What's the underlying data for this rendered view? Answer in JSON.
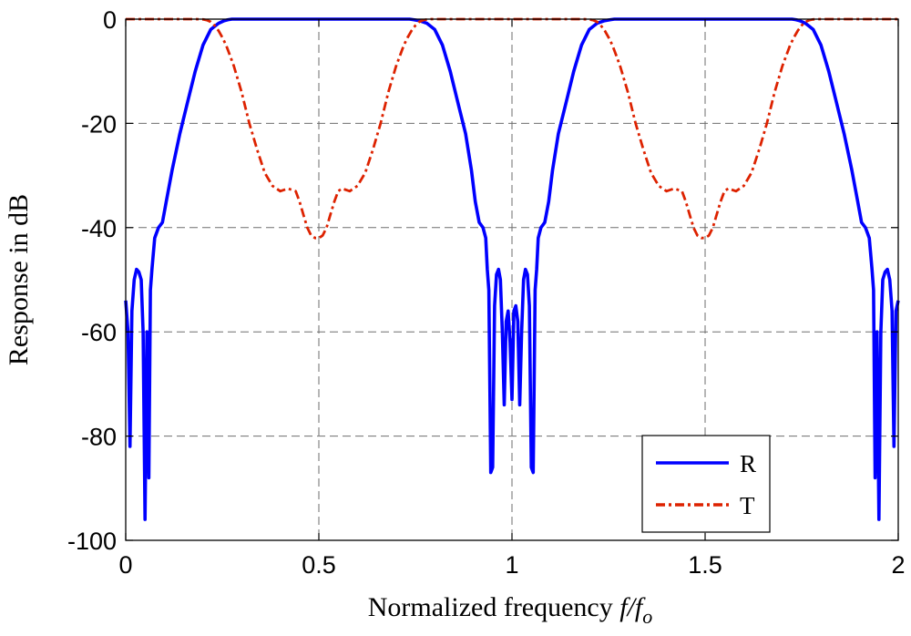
{
  "chart_data": {
    "type": "line",
    "title": "",
    "xlabel": "Normalized frequency",
    "xlabel_symbol_num": "f/f",
    "xlabel_symbol_sub": "o",
    "ylabel": "Response in dB",
    "xlim": [
      0,
      2
    ],
    "ylim": [
      -100,
      0
    ],
    "xticks": [
      0,
      0.5,
      1,
      1.5,
      2
    ],
    "xtick_labels": [
      "0",
      "0.5",
      "1",
      "1.5",
      "2"
    ],
    "yticks": [
      0,
      -20,
      -40,
      -60,
      -80,
      -100
    ],
    "ytick_labels": [
      "0",
      "-20",
      "-40",
      "-60",
      "-80",
      "-100"
    ],
    "grid": true,
    "legend_position": "bottom-right",
    "series": [
      {
        "name": "R",
        "color": "#0000ff",
        "style": "solid",
        "x": [
          0,
          0.006,
          0.011,
          0.016,
          0.022,
          0.028,
          0.034,
          0.04,
          0.045,
          0.05,
          0.055,
          0.06,
          0.064,
          0.068,
          0.075,
          0.085,
          0.095,
          0.105,
          0.12,
          0.14,
          0.16,
          0.18,
          0.2,
          0.22,
          0.24,
          0.255,
          0.265,
          0.275,
          0.285,
          0.3,
          0.5,
          0.7,
          0.715,
          0.725,
          0.735,
          0.745,
          0.76,
          0.78,
          0.8,
          0.82,
          0.84,
          0.86,
          0.88,
          0.895,
          0.905,
          0.915,
          0.925,
          0.932,
          0.936,
          0.94,
          0.945,
          0.95,
          0.955,
          0.96,
          0.965,
          0.97,
          0.975,
          0.98,
          0.985,
          0.99,
          0.995,
          1.0,
          1.005,
          1.01,
          1.015,
          1.02,
          1.025,
          1.03,
          1.035,
          1.04,
          1.045,
          1.05,
          1.055,
          1.06,
          1.064,
          1.068,
          1.075,
          1.085,
          1.095,
          1.105,
          1.12,
          1.14,
          1.16,
          1.18,
          1.2,
          1.22,
          1.24,
          1.255,
          1.265,
          1.275,
          1.285,
          1.3,
          1.5,
          1.7,
          1.715,
          1.725,
          1.735,
          1.745,
          1.76,
          1.78,
          1.8,
          1.82,
          1.84,
          1.86,
          1.88,
          1.895,
          1.905,
          1.915,
          1.925,
          1.932,
          1.936,
          1.94,
          1.945,
          1.95,
          1.955,
          1.96,
          1.966,
          1.972,
          1.978,
          1.984,
          1.989,
          1.994,
          2.0
        ],
        "values": [
          -54,
          -60,
          -82,
          -56,
          -50,
          -48,
          -48.5,
          -50,
          -60,
          -96,
          -60,
          -88,
          -52,
          -48,
          -42,
          -40,
          -39,
          -35,
          -29,
          -22,
          -16,
          -10,
          -5,
          -2,
          -0.8,
          -0.3,
          -0.1,
          0,
          0,
          0,
          0,
          0,
          0,
          0,
          0,
          -0.1,
          -0.3,
          -0.8,
          -2,
          -5,
          -10,
          -16,
          -22,
          -29,
          -35,
          -39,
          -40,
          -42,
          -48,
          -52,
          -87,
          -86,
          -55,
          -49,
          -48,
          -50,
          -60,
          -74,
          -58,
          -56,
          -62,
          -73,
          -56,
          -55,
          -58,
          -74,
          -60,
          -50,
          -48,
          -49,
          -55,
          -86,
          -87,
          -52,
          -48,
          -42,
          -40,
          -39,
          -35,
          -29,
          -22,
          -16,
          -10,
          -5,
          -2,
          -0.8,
          -0.3,
          -0.1,
          0,
          0,
          0,
          0,
          0,
          0,
          0,
          0,
          -0.1,
          -0.3,
          -0.8,
          -2,
          -5,
          -10,
          -16,
          -22,
          -29,
          -35,
          -39,
          -40,
          -42,
          -48,
          -52,
          -88,
          -60,
          -96,
          -60,
          -50,
          -48.5,
          -48,
          -50,
          -56,
          -82,
          -56,
          -54
        ]
      },
      {
        "name": "T",
        "color": "#dd2200",
        "style": "dashdot",
        "x": [
          0,
          0.15,
          0.18,
          0.2,
          0.21,
          0.22,
          0.23,
          0.24,
          0.25,
          0.26,
          0.27,
          0.28,
          0.3,
          0.32,
          0.34,
          0.36,
          0.38,
          0.4,
          0.42,
          0.44,
          0.45,
          0.46,
          0.47,
          0.48,
          0.49,
          0.5,
          0.51,
          0.52,
          0.53,
          0.54,
          0.55,
          0.56,
          0.58,
          0.6,
          0.62,
          0.64,
          0.66,
          0.68,
          0.7,
          0.72,
          0.73,
          0.74,
          0.75,
          0.76,
          0.77,
          0.78,
          0.79,
          0.8,
          0.82,
          0.85,
          1.15,
          1.18,
          1.2,
          1.21,
          1.22,
          1.23,
          1.24,
          1.25,
          1.26,
          1.27,
          1.28,
          1.3,
          1.32,
          1.34,
          1.36,
          1.38,
          1.4,
          1.42,
          1.44,
          1.45,
          1.46,
          1.47,
          1.48,
          1.49,
          1.5,
          1.51,
          1.52,
          1.53,
          1.54,
          1.55,
          1.56,
          1.58,
          1.6,
          1.62,
          1.64,
          1.66,
          1.68,
          1.7,
          1.72,
          1.73,
          1.74,
          1.75,
          1.76,
          1.77,
          1.78,
          1.79,
          1.8,
          1.82,
          1.85,
          2.0
        ],
        "values": [
          0,
          0,
          0,
          -0.05,
          -0.2,
          -0.5,
          -1.2,
          -2.2,
          -3.5,
          -5,
          -7,
          -9,
          -14,
          -20,
          -25,
          -29.5,
          -32,
          -33,
          -32.5,
          -33,
          -35,
          -37.5,
          -40,
          -41.5,
          -42,
          -42,
          -41.5,
          -40,
          -37.5,
          -35,
          -33,
          -32.5,
          -33,
          -32,
          -29.5,
          -25,
          -20,
          -14,
          -9,
          -5,
          -3.5,
          -2.2,
          -1.2,
          -0.5,
          -0.2,
          -0.05,
          0,
          0,
          0,
          0,
          0,
          0,
          -0.05,
          -0.2,
          -0.5,
          -1.2,
          -2.2,
          -3.5,
          -5,
          -7,
          -9,
          -14,
          -20,
          -25,
          -29.5,
          -32,
          -33,
          -32.5,
          -33,
          -35,
          -37.5,
          -40,
          -41.5,
          -42,
          -42,
          -41.5,
          -40,
          -37.5,
          -35,
          -33,
          -32.5,
          -33,
          -32,
          -29.5,
          -25,
          -20,
          -14,
          -9,
          -5,
          -3.5,
          -2.2,
          -1.2,
          -0.5,
          -0.2,
          -0.05,
          0,
          0,
          0,
          0,
          0
        ]
      }
    ]
  }
}
